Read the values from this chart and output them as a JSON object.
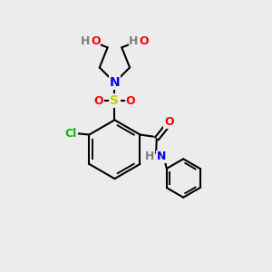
{
  "background_color": "#ececec",
  "atom_colors": {
    "C": "#000000",
    "H": "#808080",
    "O": "#ff0000",
    "N": "#0000ff",
    "S": "#cccc00",
    "Cl": "#00bb00"
  },
  "bond_color": "#000000",
  "bond_width": 1.5,
  "figsize": [
    3.0,
    3.0
  ],
  "dpi": 100,
  "xlim": [
    0,
    10
  ],
  "ylim": [
    0,
    10
  ]
}
